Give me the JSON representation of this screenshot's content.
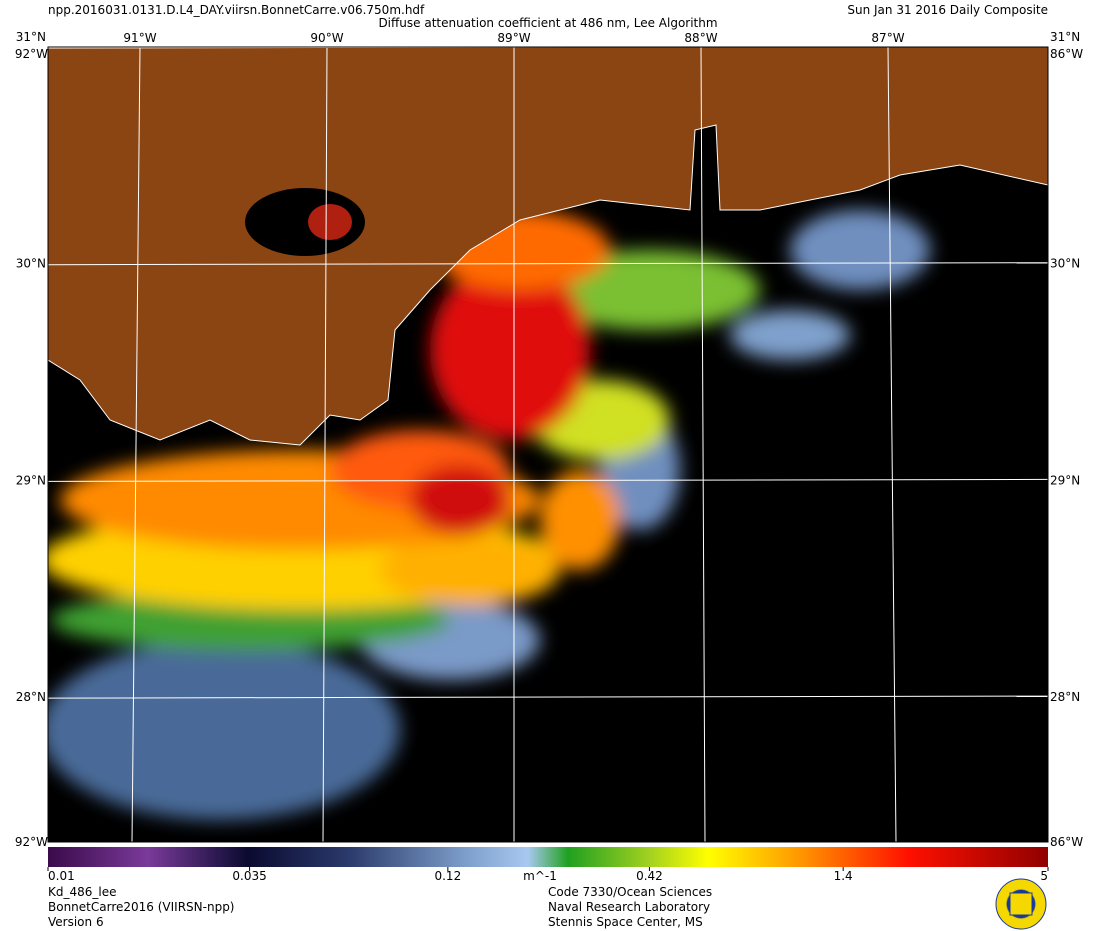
{
  "header": {
    "file": "npp.2016031.0131.D.L4_DAY.viirsn.BonnetCarre.v06.750m.hdf",
    "title": "Diffuse attenuation coefficient at 486 nm, Lee Algorithm",
    "date": "Sun Jan 31 2016 Daily Composite"
  },
  "map": {
    "latitudes": [
      {
        "value": 31,
        "label": "31°N"
      },
      {
        "value": 30,
        "label": "30°N"
      },
      {
        "value": 29,
        "label": "29°N"
      },
      {
        "value": 28,
        "label": "28°N"
      }
    ],
    "longitudes": [
      {
        "value": -91,
        "label": "91°W"
      },
      {
        "value": -90,
        "label": "90°W"
      },
      {
        "value": -89,
        "label": "89°W"
      },
      {
        "value": -88,
        "label": "88°W"
      },
      {
        "value": -87,
        "label": "87°W"
      }
    ],
    "west_edge_label": "92°W",
    "east_edge_label": "86°W"
  },
  "colorbar": {
    "scale": "log",
    "range": [
      0.01,
      5
    ],
    "ticks": [
      0.01,
      0.035,
      0.12,
      0.42,
      1.4,
      5
    ],
    "unit": "m^-1"
  },
  "footer": {
    "left": [
      "Kd_486_lee",
      "BonnetCarre2016 (VIIRSN-npp)",
      "Version 6"
    ],
    "center": [
      "Code 7330/Ocean Sciences",
      "Naval Research Laboratory",
      "Stennis Space Center, MS"
    ]
  }
}
